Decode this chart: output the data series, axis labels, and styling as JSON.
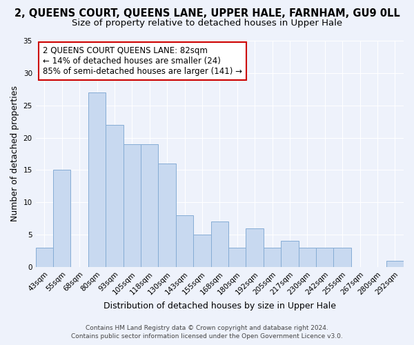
{
  "title": "2, QUEENS COURT, QUEENS LANE, UPPER HALE, FARNHAM, GU9 0LL",
  "subtitle": "Size of property relative to detached houses in Upper Hale",
  "xlabel": "Distribution of detached houses by size in Upper Hale",
  "ylabel": "Number of detached properties",
  "bar_labels": [
    "43sqm",
    "55sqm",
    "68sqm",
    "80sqm",
    "93sqm",
    "105sqm",
    "118sqm",
    "130sqm",
    "143sqm",
    "155sqm",
    "168sqm",
    "180sqm",
    "192sqm",
    "205sqm",
    "217sqm",
    "230sqm",
    "242sqm",
    "255sqm",
    "267sqm",
    "280sqm",
    "292sqm"
  ],
  "bar_values": [
    3,
    15,
    0,
    27,
    22,
    19,
    19,
    16,
    8,
    5,
    7,
    3,
    6,
    3,
    4,
    3,
    3,
    3,
    0,
    0,
    1
  ],
  "bar_color": "#c8d9f0",
  "bar_edge_color": "#85acd4",
  "annotation_box_text": "2 QUEENS COURT QUEENS LANE: 82sqm\n← 14% of detached houses are smaller (24)\n85% of semi-detached houses are larger (141) →",
  "annotation_box_color": "white",
  "annotation_box_edgecolor": "#cc0000",
  "ylim": [
    0,
    35
  ],
  "yticks": [
    0,
    5,
    10,
    15,
    20,
    25,
    30,
    35
  ],
  "footer_line1": "Contains HM Land Registry data © Crown copyright and database right 2024.",
  "footer_line2": "Contains public sector information licensed under the Open Government Licence v3.0.",
  "background_color": "#eef2fb",
  "grid_color": "#ffffff",
  "title_fontsize": 10.5,
  "subtitle_fontsize": 9.5,
  "annotation_fontsize": 8.5,
  "axis_label_fontsize": 9,
  "tick_fontsize": 7.5,
  "footer_fontsize": 6.5
}
